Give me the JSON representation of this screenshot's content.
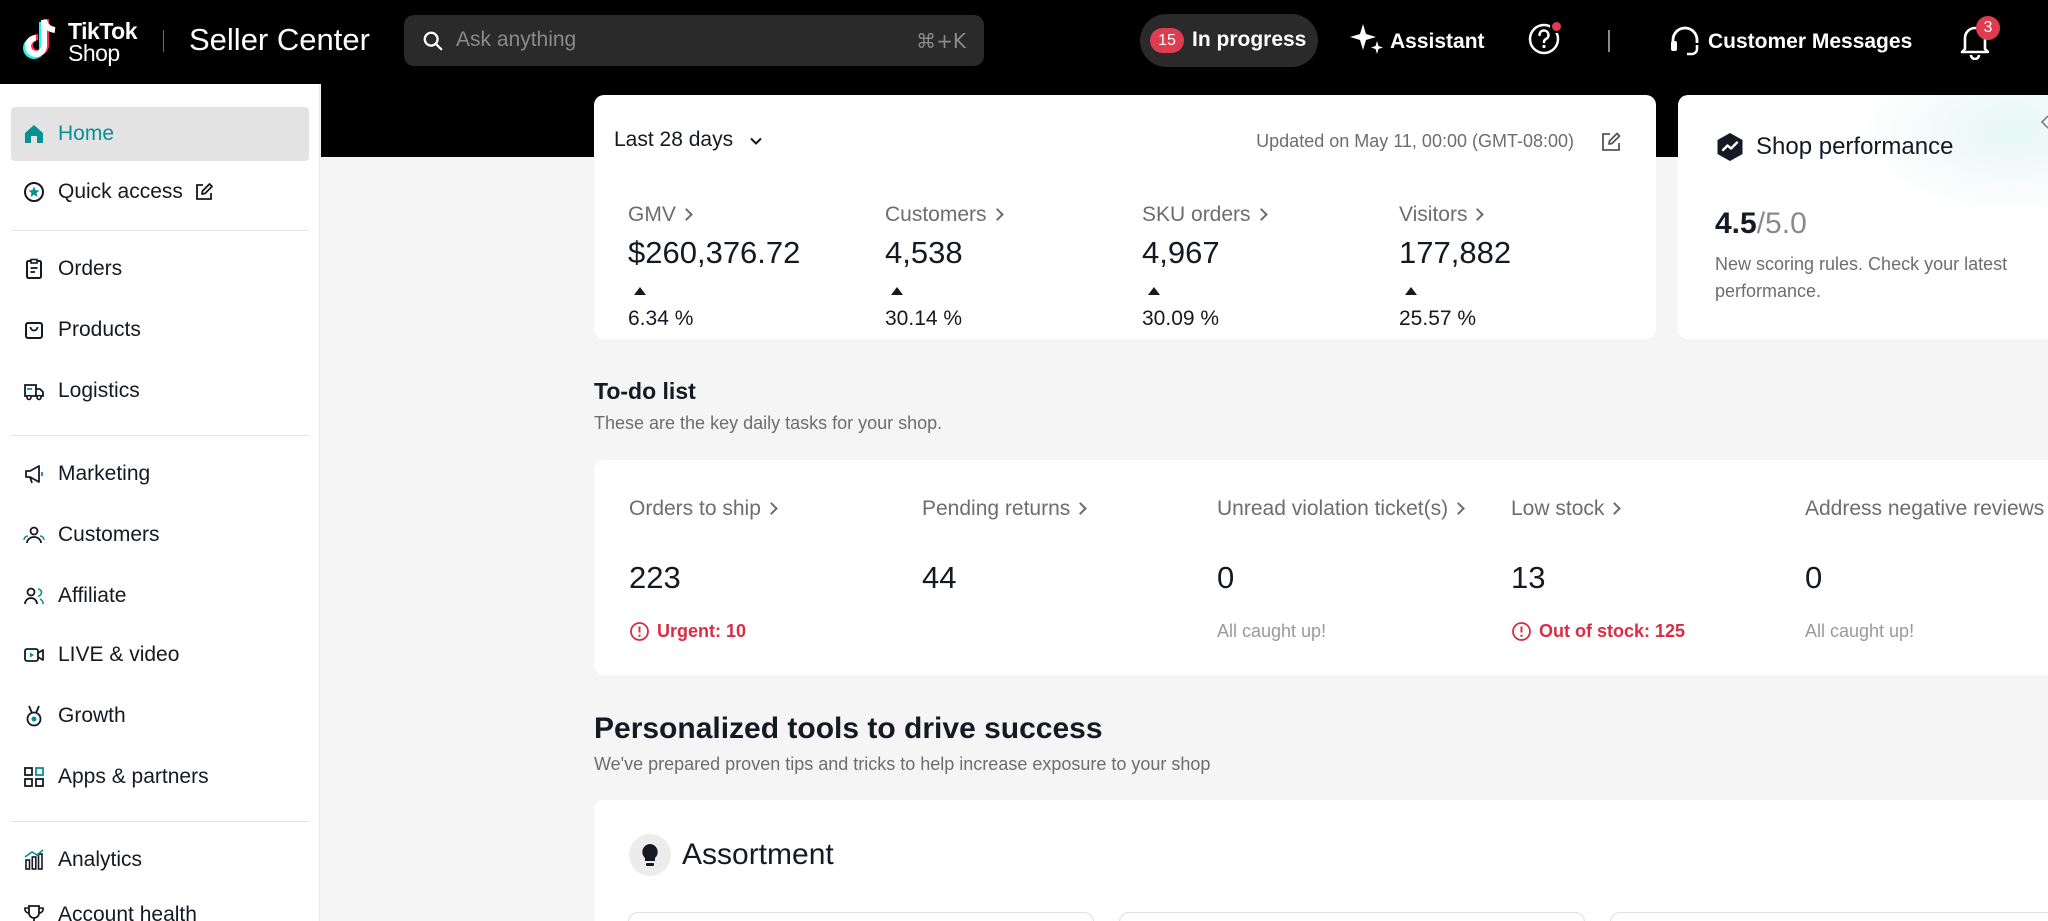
{
  "brand": {
    "word1": "TikTok",
    "word2": "Shop",
    "app_title": "Seller Center"
  },
  "search": {
    "placeholder": "Ask anything",
    "shortcut": "⌘+K"
  },
  "topbar": {
    "in_progress_count": "15",
    "in_progress_label": "In progress",
    "assistant_label": "Assistant",
    "customer_messages_label": "Customer Messages",
    "notifications_count": "3"
  },
  "colors": {
    "accent": "#0a8f93",
    "badge": "#e03c51",
    "urgent": "#d92c45"
  },
  "sidebar": {
    "items": [
      {
        "label": "Home",
        "icon": "home-icon",
        "active": true
      },
      {
        "label": "Quick access",
        "icon": "star-circle-icon"
      },
      {
        "label": "Orders",
        "icon": "clipboard-icon"
      },
      {
        "label": "Products",
        "icon": "shopping-bag-icon"
      },
      {
        "label": "Logistics",
        "icon": "truck-icon"
      },
      {
        "label": "Marketing",
        "icon": "megaphone-icon"
      },
      {
        "label": "Customers",
        "icon": "users-icon"
      },
      {
        "label": "Affiliate",
        "icon": "user-link-icon"
      },
      {
        "label": "LIVE & video",
        "icon": "video-icon"
      },
      {
        "label": "Growth",
        "icon": "medal-icon"
      },
      {
        "label": "Apps & partners",
        "icon": "grid-icon"
      },
      {
        "label": "Analytics",
        "icon": "bar-chart-icon"
      },
      {
        "label": "Account health",
        "icon": "trophy-icon"
      }
    ]
  },
  "metrics": {
    "range_label": "Last 28 days",
    "updated": "Updated on May 11, 00:00 (GMT-08:00)",
    "items": [
      {
        "label": "GMV",
        "value": "$260,376.72",
        "change": "6.34 %"
      },
      {
        "label": "Customers",
        "value": "4,538",
        "change": "30.14 %"
      },
      {
        "label": "SKU orders",
        "value": "4,967",
        "change": "30.09 %"
      },
      {
        "label": "Visitors",
        "value": "177,882",
        "change": "25.57 %"
      }
    ]
  },
  "shop_performance": {
    "title": "Shop performance",
    "score": "4.5",
    "score_max": "/5.0",
    "description": "New scoring rules. Check your latest performance."
  },
  "todo": {
    "title": "To-do list",
    "subtitle": "These are the key daily tasks for your shop.",
    "items": [
      {
        "label": "Orders to ship",
        "value": "223",
        "note": "Urgent: 10",
        "urgent": true
      },
      {
        "label": "Pending returns",
        "value": "44",
        "note": ""
      },
      {
        "label": "Unread violation ticket(s)",
        "value": "0",
        "note": "All caught up!"
      },
      {
        "label": "Low stock",
        "value": "13",
        "note": "Out of stock: 125",
        "urgent": true
      },
      {
        "label": "Address negative reviews",
        "value": "0",
        "note": "All caught up!"
      }
    ]
  },
  "tools": {
    "title": "Personalized tools to drive success",
    "subtitle": "We've prepared proven tips and tricks to help increase exposure to your shop",
    "assortment_title": "Assortment"
  }
}
